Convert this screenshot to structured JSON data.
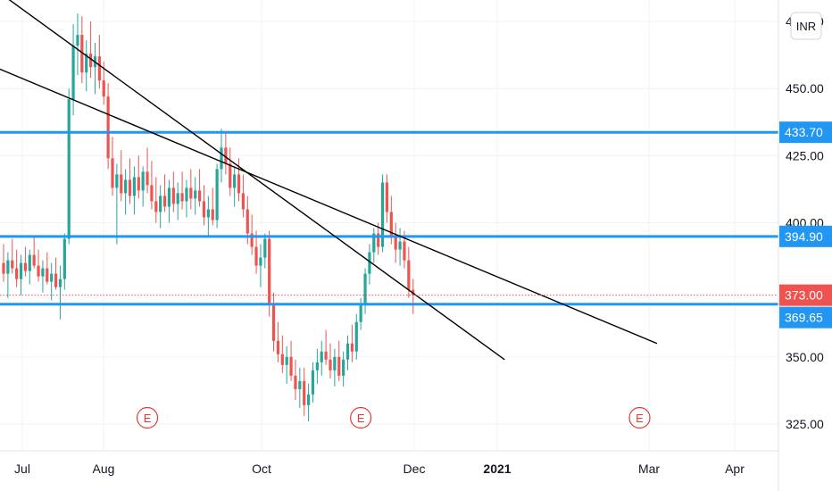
{
  "currency_badge": "INR",
  "chart_data": {
    "type": "candlestick",
    "title": "",
    "xlabel": "",
    "ylabel": "",
    "ylim": [
      315,
      483
    ],
    "y_ticks": [
      {
        "value": 475,
        "label": "475.00"
      },
      {
        "value": 450,
        "label": "450.00"
      },
      {
        "value": 425,
        "label": "425.00"
      },
      {
        "value": 400,
        "label": "400.00"
      },
      {
        "value": 350,
        "label": "350.00"
      },
      {
        "value": 325,
        "label": "325.00"
      }
    ],
    "x_ticks": [
      {
        "label": "Jul",
        "bold": false
      },
      {
        "label": "Aug",
        "bold": false
      },
      {
        "label": "Oct",
        "bold": false
      },
      {
        "label": "Dec",
        "bold": false
      },
      {
        "label": "2021",
        "bold": true
      },
      {
        "label": "Mar",
        "bold": false
      },
      {
        "label": "Apr",
        "bold": false
      }
    ],
    "colors": {
      "up": "#26a69a",
      "down": "#ef5350",
      "hline": "#2196f3",
      "trend": "#000000",
      "price": "#ef5350",
      "earnings": "#e53935"
    },
    "horizontal_levels": [
      {
        "value": 433.7,
        "label": "433.70"
      },
      {
        "value": 394.9,
        "label": "394.90"
      },
      {
        "value": 369.65,
        "label": "369.65"
      }
    ],
    "last_price": {
      "value": 373.0,
      "label": "373.00"
    },
    "earnings_markers": [
      {
        "label": "E",
        "index": 33
      },
      {
        "label": "E",
        "index": 82
      },
      {
        "label": "E",
        "index": 146
      }
    ],
    "trendlines": [
      {
        "from": {
          "index": -2,
          "price": 487
        },
        "to": {
          "index": 115,
          "price": 349
        }
      },
      {
        "from": {
          "index": -2,
          "price": 458
        },
        "to": {
          "index": 150,
          "price": 355
        }
      }
    ],
    "ohlc": [
      [
        385,
        392,
        378,
        381
      ],
      [
        381,
        389,
        372,
        386
      ],
      [
        386,
        394,
        381,
        383
      ],
      [
        383,
        390,
        376,
        379
      ],
      [
        379,
        388,
        373,
        385
      ],
      [
        385,
        391,
        380,
        382
      ],
      [
        382,
        390,
        377,
        388
      ],
      [
        388,
        395,
        383,
        384
      ],
      [
        384,
        390,
        378,
        380
      ],
      [
        380,
        386,
        374,
        383
      ],
      [
        383,
        389,
        377,
        378
      ],
      [
        378,
        385,
        371,
        381
      ],
      [
        381,
        387,
        375,
        376
      ],
      [
        376,
        384,
        364,
        379
      ],
      [
        379,
        396,
        375,
        394
      ],
      [
        394,
        450,
        392,
        446
      ],
      [
        446,
        474,
        440,
        466
      ],
      [
        466,
        478,
        455,
        470
      ],
      [
        470,
        477,
        452,
        456
      ],
      [
        456,
        468,
        449,
        463
      ],
      [
        463,
        475,
        454,
        458
      ],
      [
        458,
        467,
        448,
        462
      ],
      [
        462,
        470,
        450,
        453
      ],
      [
        453,
        460,
        444,
        447
      ],
      [
        447,
        452,
        420,
        424
      ],
      [
        424,
        432,
        410,
        413
      ],
      [
        413,
        422,
        392,
        418
      ],
      [
        418,
        427,
        408,
        411
      ],
      [
        411,
        420,
        403,
        416
      ],
      [
        416,
        424,
        407,
        410
      ],
      [
        410,
        421,
        403,
        417
      ],
      [
        417,
        425,
        409,
        412
      ],
      [
        412,
        421,
        406,
        419
      ],
      [
        419,
        428,
        411,
        414
      ],
      [
        414,
        423,
        405,
        408
      ],
      [
        408,
        417,
        400,
        404
      ],
      [
        404,
        414,
        398,
        410
      ],
      [
        410,
        418,
        404,
        406
      ],
      [
        406,
        416,
        400,
        413
      ],
      [
        413,
        419,
        404,
        407
      ],
      [
        407,
        415,
        401,
        411
      ],
      [
        411,
        419,
        405,
        408
      ],
      [
        408,
        416,
        402,
        413
      ],
      [
        413,
        420,
        405,
        409
      ],
      [
        409,
        417,
        403,
        412
      ],
      [
        412,
        420,
        406,
        408
      ],
      [
        408,
        414,
        399,
        402
      ],
      [
        402,
        410,
        395,
        405
      ],
      [
        405,
        413,
        399,
        401
      ],
      [
        401,
        422,
        398,
        420
      ],
      [
        420,
        435,
        415,
        428
      ],
      [
        428,
        434,
        418,
        422
      ],
      [
        422,
        428,
        410,
        413
      ],
      [
        413,
        421,
        406,
        418
      ],
      [
        418,
        424,
        408,
        411
      ],
      [
        411,
        418,
        402,
        405
      ],
      [
        405,
        410,
        392,
        396
      ],
      [
        396,
        403,
        388,
        391
      ],
      [
        391,
        397,
        381,
        384
      ],
      [
        384,
        392,
        376,
        387
      ],
      [
        387,
        396,
        383,
        394
      ],
      [
        394,
        397,
        365,
        370
      ],
      [
        370,
        374,
        352,
        356
      ],
      [
        356,
        363,
        348,
        351
      ],
      [
        351,
        358,
        344,
        347
      ],
      [
        347,
        354,
        340,
        350
      ],
      [
        350,
        356,
        341,
        343
      ],
      [
        343,
        349,
        334,
        338
      ],
      [
        338,
        346,
        331,
        341
      ],
      [
        341,
        346,
        328,
        332
      ],
      [
        332,
        340,
        326,
        336
      ],
      [
        336,
        348,
        333,
        345
      ],
      [
        345,
        353,
        340,
        348
      ],
      [
        348,
        356,
        343,
        352
      ],
      [
        352,
        360,
        347,
        349
      ],
      [
        349,
        355,
        342,
        345
      ],
      [
        345,
        353,
        339,
        350
      ],
      [
        350,
        356,
        341,
        343
      ],
      [
        343,
        352,
        339,
        349
      ],
      [
        349,
        358,
        345,
        355
      ],
      [
        355,
        362,
        348,
        352
      ],
      [
        352,
        366,
        349,
        363
      ],
      [
        363,
        372,
        360,
        370
      ],
      [
        370,
        383,
        366,
        381
      ],
      [
        381,
        392,
        377,
        389
      ],
      [
        389,
        398,
        385,
        396
      ],
      [
        396,
        400,
        388,
        391
      ],
      [
        391,
        418,
        389,
        415
      ],
      [
        415,
        418,
        400,
        404
      ],
      [
        404,
        410,
        392,
        395
      ],
      [
        395,
        400,
        385,
        390
      ],
      [
        390,
        398,
        384,
        393
      ],
      [
        393,
        397,
        383,
        386
      ],
      [
        386,
        391,
        372,
        375
      ],
      [
        375,
        379,
        366,
        373
      ]
    ]
  }
}
